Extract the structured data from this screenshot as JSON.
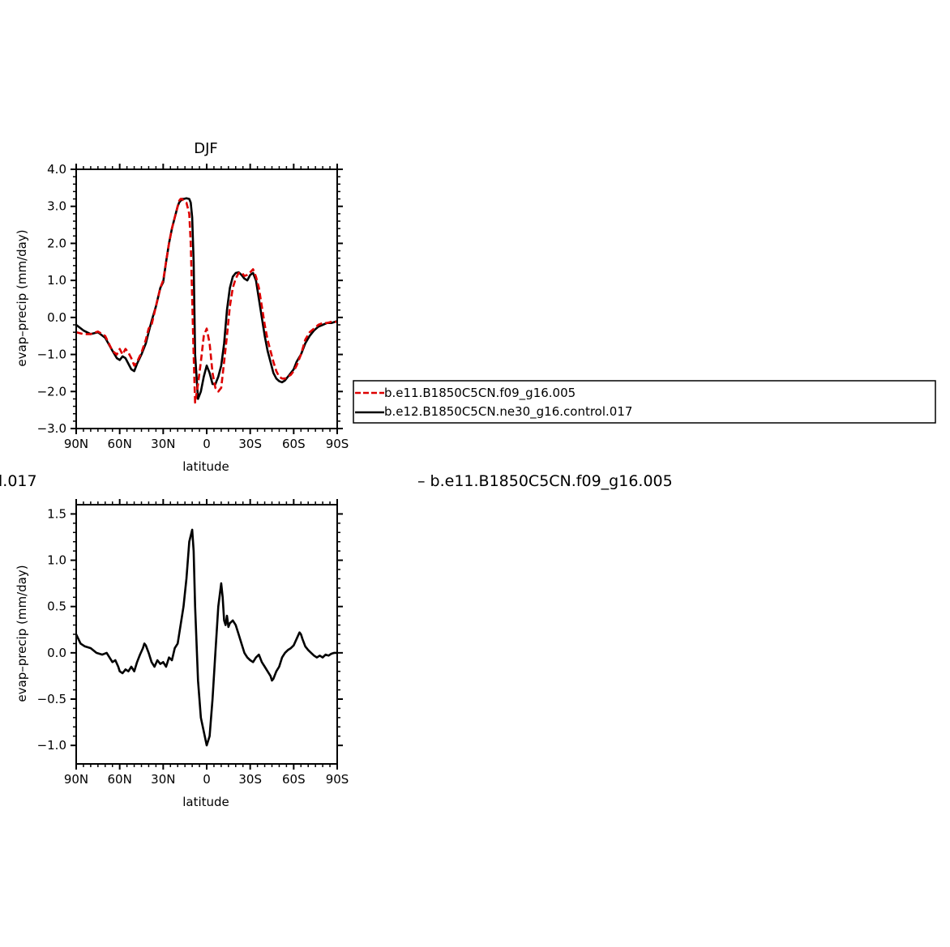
{
  "figure": {
    "cut_text_left": "l.017",
    "cut_text_right": "– b.e11.B1850C5CN.f09_g16.005"
  },
  "chart_data": [
    {
      "type": "line",
      "title": "DJF",
      "xlabel": "latitude",
      "ylabel": "evap–precip  (mm/day)",
      "xlim": [
        90,
        -90
      ],
      "ylim": [
        -3.0,
        4.0
      ],
      "yticks": [
        -3.0,
        -2.0,
        -1.0,
        0.0,
        1.0,
        2.0,
        3.0,
        4.0
      ],
      "ytick_labels": [
        "−3.0",
        "−2.0",
        "−1.0",
        "0.0",
        "1.0",
        "2.0",
        "3.0",
        "4.0"
      ],
      "xticks": [
        90,
        60,
        30,
        0,
        -30,
        -60,
        -90
      ],
      "xtick_labels": [
        "90N",
        "60N",
        "30N",
        "0",
        "30S",
        "60S",
        "90S"
      ],
      "legend": "right",
      "series": [
        {
          "name": "b.e11.B1850C5CN.f09_g16.005",
          "color": "#dd0000",
          "dash": true,
          "x": [
            90,
            85,
            80,
            75,
            70,
            65,
            62,
            60,
            58,
            56,
            54,
            52,
            50,
            48,
            45,
            42,
            40,
            38,
            35,
            32,
            30,
            28,
            26,
            24,
            22,
            20,
            19,
            18,
            17,
            16,
            14,
            12,
            11,
            10,
            9,
            8,
            6,
            4,
            2,
            0,
            -2,
            -4,
            -6,
            -8,
            -10,
            -12,
            -14,
            -16,
            -18,
            -20,
            -22,
            -24,
            -26,
            -28,
            -30,
            -32,
            -34,
            -36,
            -38,
            -40,
            -42,
            -44,
            -46,
            -48,
            -50,
            -52,
            -54,
            -56,
            -58,
            -60,
            -62,
            -65,
            -68,
            -71,
            -74,
            -77,
            -80,
            -83,
            -86,
            -90
          ],
          "y": [
            -0.4,
            -0.45,
            -0.45,
            -0.38,
            -0.5,
            -0.9,
            -1.0,
            -0.85,
            -1.0,
            -0.85,
            -0.95,
            -1.1,
            -1.3,
            -1.2,
            -0.95,
            -0.6,
            -0.3,
            -0.2,
            0.3,
            0.8,
            1.0,
            1.5,
            2.0,
            2.4,
            2.7,
            3.0,
            3.15,
            3.2,
            3.2,
            3.15,
            3.1,
            2.8,
            2.0,
            0.5,
            -1.0,
            -2.3,
            -1.8,
            -1.2,
            -0.5,
            -0.3,
            -0.7,
            -1.5,
            -1.9,
            -2.0,
            -1.9,
            -1.2,
            -0.5,
            0.3,
            0.8,
            1.05,
            1.2,
            1.22,
            1.12,
            1.15,
            1.22,
            1.3,
            1.1,
            0.8,
            0.3,
            -0.2,
            -0.6,
            -0.9,
            -1.2,
            -1.45,
            -1.6,
            -1.65,
            -1.65,
            -1.6,
            -1.55,
            -1.45,
            -1.3,
            -1.0,
            -0.6,
            -0.4,
            -0.3,
            -0.2,
            -0.15,
            -0.15,
            -0.12,
            -0.12
          ]
        },
        {
          "name": "b.e12.B1850C5CN.ne30_g16.control.017",
          "color": "#000000",
          "dash": false,
          "x": [
            90,
            85,
            80,
            75,
            70,
            65,
            62,
            60,
            58,
            56,
            54,
            52,
            50,
            48,
            45,
            42,
            40,
            38,
            35,
            32,
            30,
            28,
            26,
            24,
            22,
            20,
            19,
            18,
            17,
            16,
            14,
            12,
            11,
            10,
            9,
            8,
            6,
            4,
            2,
            0,
            -2,
            -4,
            -6,
            -8,
            -10,
            -12,
            -14,
            -16,
            -18,
            -20,
            -22,
            -24,
            -26,
            -28,
            -30,
            -32,
            -34,
            -36,
            -38,
            -40,
            -42,
            -44,
            -46,
            -48,
            -50,
            -52,
            -54,
            -56,
            -58,
            -60,
            -62,
            -65,
            -68,
            -71,
            -74,
            -77,
            -80,
            -83,
            -86,
            -90
          ],
          "y": [
            -0.2,
            -0.35,
            -0.45,
            -0.4,
            -0.55,
            -0.9,
            -1.1,
            -1.15,
            -1.05,
            -1.1,
            -1.25,
            -1.4,
            -1.45,
            -1.25,
            -1.0,
            -0.7,
            -0.4,
            -0.1,
            0.3,
            0.8,
            0.95,
            1.5,
            2.0,
            2.4,
            2.7,
            3.0,
            3.1,
            3.15,
            3.2,
            3.2,
            3.22,
            3.2,
            3.1,
            2.7,
            1.5,
            -1.0,
            -2.2,
            -2.0,
            -1.6,
            -1.3,
            -1.5,
            -1.8,
            -1.8,
            -1.6,
            -1.3,
            -0.7,
            0.2,
            0.8,
            1.1,
            1.2,
            1.22,
            1.15,
            1.05,
            1.0,
            1.15,
            1.2,
            1.0,
            0.5,
            0.0,
            -0.5,
            -0.9,
            -1.2,
            -1.5,
            -1.65,
            -1.72,
            -1.75,
            -1.7,
            -1.6,
            -1.5,
            -1.4,
            -1.2,
            -1.0,
            -0.7,
            -0.5,
            -0.35,
            -0.25,
            -0.2,
            -0.15,
            -0.15,
            -0.1
          ]
        }
      ]
    },
    {
      "type": "line",
      "title": "",
      "xlabel": "latitude",
      "ylabel": "evap–precip  (mm/day)",
      "xlim": [
        90,
        -90
      ],
      "ylim": [
        -1.2,
        1.6
      ],
      "yticks": [
        -1.0,
        -0.5,
        0.0,
        0.5,
        1.0,
        1.5
      ],
      "ytick_labels": [
        "−1.0",
        "−0.5",
        "0.0",
        "0.5",
        "1.0",
        "1.5"
      ],
      "xticks": [
        90,
        60,
        30,
        0,
        -30,
        -60,
        -90
      ],
      "xtick_labels": [
        "90N",
        "60N",
        "30N",
        "0",
        "30S",
        "60S",
        "90S"
      ],
      "series": [
        {
          "color": "#000000",
          "dash": false,
          "x": [
            90,
            87,
            84,
            80,
            76,
            72,
            69,
            67,
            65,
            63,
            61,
            60,
            58,
            56,
            54,
            52,
            50,
            48,
            46,
            44,
            43,
            42,
            40,
            38,
            36,
            34,
            32,
            30,
            28,
            26,
            24,
            22,
            20,
            18,
            16,
            14,
            12,
            10,
            9,
            8,
            6,
            4,
            2,
            0,
            -2,
            -4,
            -6,
            -8,
            -10,
            -11,
            -12,
            -13,
            -14,
            -15,
            -16,
            -18,
            -20,
            -22,
            -24,
            -26,
            -28,
            -30,
            -32,
            -34,
            -36,
            -38,
            -40,
            -42,
            -44,
            -45,
            -46,
            -48,
            -50,
            -52,
            -54,
            -56,
            -58,
            -60,
            -62,
            -64,
            -65,
            -66,
            -68,
            -70,
            -72,
            -74,
            -76,
            -78,
            -80,
            -82,
            -84,
            -86,
            -88,
            -90
          ],
          "y": [
            0.2,
            0.1,
            0.07,
            0.05,
            0.0,
            -0.02,
            0.0,
            -0.05,
            -0.1,
            -0.08,
            -0.15,
            -0.2,
            -0.22,
            -0.18,
            -0.2,
            -0.15,
            -0.2,
            -0.1,
            -0.02,
            0.05,
            0.1,
            0.08,
            0.0,
            -0.1,
            -0.15,
            -0.08,
            -0.12,
            -0.1,
            -0.15,
            -0.05,
            -0.08,
            0.05,
            0.1,
            0.3,
            0.5,
            0.8,
            1.2,
            1.33,
            1.1,
            0.5,
            -0.3,
            -0.7,
            -0.85,
            -1.0,
            -0.9,
            -0.5,
            0.0,
            0.5,
            0.75,
            0.6,
            0.35,
            0.3,
            0.4,
            0.28,
            0.32,
            0.35,
            0.3,
            0.2,
            0.1,
            0.0,
            -0.05,
            -0.08,
            -0.1,
            -0.05,
            -0.02,
            -0.1,
            -0.15,
            -0.2,
            -0.25,
            -0.3,
            -0.28,
            -0.2,
            -0.15,
            -0.05,
            0.0,
            0.03,
            0.05,
            0.08,
            0.15,
            0.22,
            0.2,
            0.15,
            0.07,
            0.03,
            0.0,
            -0.03,
            -0.05,
            -0.03,
            -0.05,
            -0.02,
            -0.03,
            -0.01,
            0.0,
            0.0
          ]
        }
      ]
    }
  ]
}
